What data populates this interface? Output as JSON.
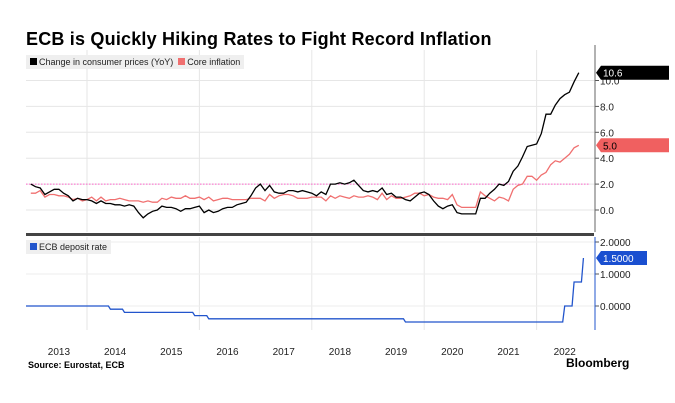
{
  "title": "ECB is Quickly Hiking Rates to Fight Record Inflation",
  "source": "Source: Eurostat, ECB",
  "brand": "Bloomberg",
  "colors": {
    "cpi": "#000000",
    "core": "#f07070",
    "deposit": "#2255cc",
    "reference": "#ff66cc"
  },
  "chart_data": [
    {
      "type": "line",
      "x_start": "2013-01",
      "frequency": "monthly",
      "x_tick_labels": [
        "2013",
        "2014",
        "2015",
        "2016",
        "2017",
        "2018",
        "2019",
        "2020",
        "2021",
        "2022"
      ],
      "y_ticks": [
        "0.0",
        "2.0",
        "4.0",
        "6.0",
        "8.0",
        "10.0"
      ],
      "ylim": [
        -1.7,
        12
      ],
      "grid": true,
      "legend_placement": "top-left",
      "reference_line": 2.0,
      "series": [
        {
          "name": "Change in consumer prices (YoY)",
          "last_label": "10.6",
          "values": [
            2.0,
            1.8,
            1.7,
            1.2,
            1.4,
            1.6,
            1.6,
            1.3,
            1.1,
            0.7,
            0.9,
            0.8,
            0.8,
            0.7,
            0.5,
            0.7,
            0.5,
            0.5,
            0.4,
            0.4,
            0.3,
            0.4,
            0.3,
            -0.2,
            -0.6,
            -0.3,
            -0.1,
            0.0,
            0.3,
            0.2,
            0.2,
            0.1,
            -0.1,
            0.1,
            0.1,
            0.2,
            0.3,
            -0.2,
            0.0,
            -0.2,
            -0.1,
            0.1,
            0.2,
            0.2,
            0.4,
            0.5,
            0.6,
            1.1,
            1.7,
            2.0,
            1.5,
            1.9,
            1.4,
            1.3,
            1.3,
            1.5,
            1.5,
            1.4,
            1.5,
            1.4,
            1.3,
            1.1,
            1.4,
            1.2,
            2.0,
            2.0,
            2.1,
            2.0,
            2.1,
            2.3,
            1.9,
            1.5,
            1.4,
            1.5,
            1.4,
            1.7,
            1.2,
            1.3,
            1.0,
            1.0,
            0.8,
            0.7,
            1.0,
            1.3,
            1.4,
            1.2,
            0.7,
            0.3,
            0.1,
            0.3,
            0.4,
            -0.2,
            -0.3,
            -0.3,
            -0.3,
            -0.3,
            0.9,
            0.9,
            1.3,
            1.6,
            2.0,
            1.9,
            2.2,
            3.0,
            3.4,
            4.1,
            4.9,
            5.0,
            5.1,
            5.9,
            7.4,
            7.4,
            8.1,
            8.6,
            8.9,
            9.1,
            9.9,
            10.6
          ]
        },
        {
          "name": "Core inflation",
          "last_label": "5.0",
          "values": [
            1.3,
            1.3,
            1.5,
            1.0,
            1.2,
            1.2,
            1.1,
            1.1,
            1.0,
            0.8,
            0.9,
            0.7,
            0.8,
            1.0,
            0.7,
            1.0,
            0.7,
            0.8,
            0.8,
            0.9,
            0.8,
            0.7,
            0.7,
            0.7,
            0.6,
            0.7,
            0.6,
            0.6,
            0.9,
            0.8,
            1.0,
            0.9,
            0.9,
            1.1,
            0.9,
            0.9,
            1.0,
            0.8,
            1.0,
            0.7,
            0.8,
            0.9,
            0.9,
            0.8,
            0.8,
            0.8,
            0.8,
            0.9,
            0.9,
            0.9,
            0.7,
            1.2,
            0.9,
            1.1,
            1.2,
            1.2,
            1.1,
            0.9,
            0.9,
            0.9,
            1.0,
            1.0,
            1.0,
            0.7,
            1.1,
            0.9,
            1.1,
            1.0,
            0.9,
            1.1,
            1.0,
            1.0,
            1.1,
            1.0,
            0.8,
            1.3,
            0.8,
            1.1,
            0.9,
            0.9,
            1.0,
            1.1,
            1.3,
            1.3,
            1.1,
            1.2,
            1.0,
            0.9,
            0.9,
            0.8,
            1.2,
            0.4,
            0.2,
            0.2,
            0.2,
            0.2,
            1.4,
            1.1,
            0.9,
            0.7,
            1.0,
            0.9,
            0.7,
            1.6,
            1.9,
            2.0,
            2.6,
            2.6,
            2.3,
            2.7,
            2.9,
            3.5,
            3.8,
            3.7,
            4.0,
            4.3,
            4.8,
            5.0
          ]
        }
      ]
    },
    {
      "type": "line",
      "step": true,
      "y_ticks": [
        "0.0000",
        "1.0000",
        "2.0000"
      ],
      "ylim": [
        -0.75,
        2.1
      ],
      "grid": true,
      "legend_placement": "top-left",
      "series": [
        {
          "name": "ECB deposit rate",
          "last_label": "1.5000",
          "changes": [
            {
              "date": "2013-01",
              "value": 0.0
            },
            {
              "date": "2014-06",
              "value": -0.1
            },
            {
              "date": "2014-09",
              "value": -0.2
            },
            {
              "date": "2015-12",
              "value": -0.3
            },
            {
              "date": "2016-03",
              "value": -0.4
            },
            {
              "date": "2019-09",
              "value": -0.5
            },
            {
              "date": "2022-07",
              "value": 0.0
            },
            {
              "date": "2022-09",
              "value": 0.75
            },
            {
              "date": "2022-11",
              "value": 1.5
            }
          ]
        }
      ]
    }
  ]
}
